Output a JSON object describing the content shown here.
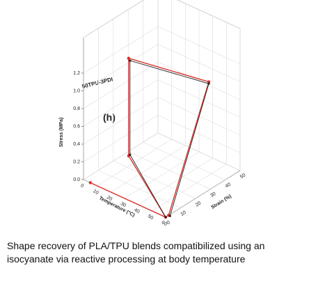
{
  "chart_data": {
    "type": "line3d",
    "annotations": [
      "50TPU-3PDI",
      "(h)"
    ],
    "xlabel": "Temperature (°C)",
    "ylabel": "Strain (%)",
    "zlabel": "Stress (MPa)",
    "xlim": [
      0,
      60
    ],
    "ylim": [
      0,
      50
    ],
    "zlim": [
      0,
      1.6
    ],
    "xticks": [
      0,
      10,
      20,
      30,
      40,
      50,
      60
    ],
    "yticks": [
      0,
      10,
      20,
      30,
      40,
      50
    ],
    "zticks": [
      {
        "value": 0,
        "label": "0.0"
      },
      0.2,
      0.4,
      0.6,
      0.8,
      {
        "value": 1,
        "label": "1.0"
      },
      1.2
    ],
    "grid": true,
    "series": [
      {
        "color": "#d9312b",
        "x": [
          5,
          60,
          21,
          21,
          60,
          60
        ],
        "y": [
          0,
          0,
          11,
          11,
          29,
          2
        ],
        "z": [
          0,
          0,
          0.3,
          1.4,
          1.22,
          0
        ]
      },
      {
        "color": "#222222",
        "x": [
          60,
          22,
          22,
          60,
          61
        ],
        "y": [
          0,
          11,
          11,
          29,
          2
        ],
        "z": [
          0,
          0.32,
          1.38,
          1.2,
          0
        ]
      }
    ]
  },
  "caption": "Shape recovery of PLA/TPU blends compatibilized using an isocyanate via reactive processing at body temperature"
}
